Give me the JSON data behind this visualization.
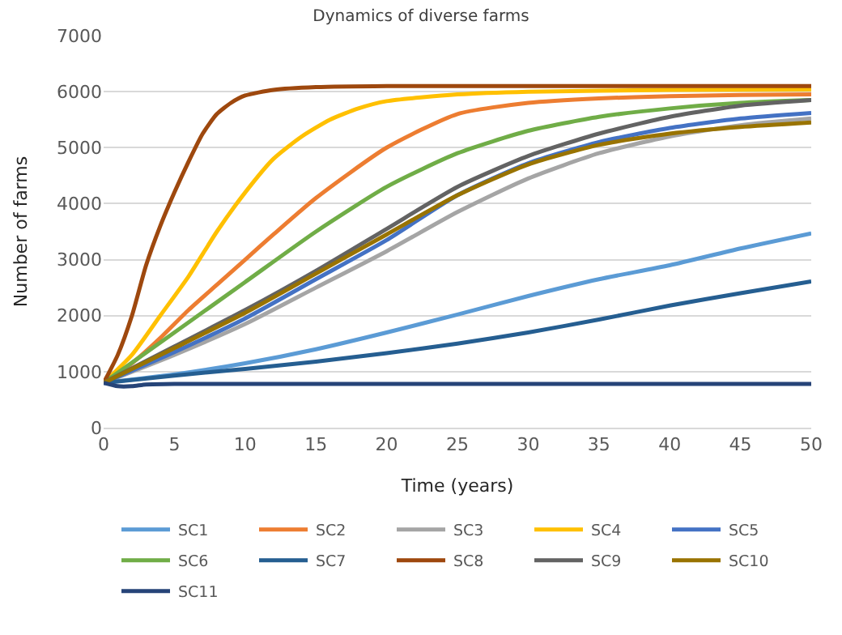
{
  "chart_data": {
    "type": "line",
    "title": "Dynamics of diverse farms",
    "xlabel": "Time (years)",
    "ylabel": "Number of farms",
    "xlim": [
      0,
      50
    ],
    "xticks": [
      0,
      5,
      10,
      15,
      20,
      25,
      30,
      35,
      40,
      45,
      50
    ],
    "ylim": [
      0,
      7000
    ],
    "yticks": [
      0,
      1000,
      2000,
      3000,
      4000,
      5000,
      6000,
      7000
    ],
    "grid": "y",
    "legend": "bottom",
    "marker": "none",
    "line_style": "solid",
    "series": [
      {
        "name": "SC1",
        "color": "#5b9bd5",
        "x": [
          0,
          5,
          10,
          15,
          20,
          25,
          30,
          35,
          40,
          45,
          50
        ],
        "values": [
          800,
          950,
          1150,
          1400,
          1700,
          2020,
          2350,
          2650,
          2900,
          3200,
          3470
        ]
      },
      {
        "name": "SC2",
        "color": "#ed7d31",
        "x": [
          0,
          2,
          4,
          6,
          8,
          10,
          12,
          15,
          20,
          25,
          30,
          35,
          40,
          45,
          50
        ],
        "values": [
          800,
          1150,
          1600,
          2100,
          2550,
          3000,
          3450,
          4100,
          5000,
          5600,
          5800,
          5880,
          5920,
          5940,
          5950
        ]
      },
      {
        "name": "SC3",
        "color": "#a5a5a5",
        "x": [
          0,
          5,
          10,
          15,
          20,
          25,
          30,
          35,
          40,
          45,
          50
        ],
        "values": [
          800,
          1300,
          1850,
          2500,
          3150,
          3850,
          4450,
          4900,
          5200,
          5400,
          5520
        ]
      },
      {
        "name": "SC4",
        "color": "#ffc000",
        "x": [
          0,
          2,
          4,
          6,
          8,
          10,
          12,
          14,
          16,
          18,
          20,
          25,
          30,
          40,
          50
        ],
        "values": [
          800,
          1300,
          2000,
          2700,
          3500,
          4200,
          4800,
          5200,
          5500,
          5700,
          5830,
          5950,
          6000,
          6030,
          6040
        ]
      },
      {
        "name": "SC5",
        "color": "#4472c4",
        "x": [
          0,
          5,
          10,
          15,
          20,
          25,
          30,
          35,
          40,
          45,
          50
        ],
        "values": [
          800,
          1350,
          1950,
          2650,
          3350,
          4150,
          4720,
          5100,
          5350,
          5520,
          5620
        ]
      },
      {
        "name": "SC6",
        "color": "#70ad47",
        "x": [
          0,
          5,
          10,
          15,
          20,
          25,
          30,
          35,
          40,
          45,
          50
        ],
        "values": [
          800,
          1700,
          2600,
          3500,
          4300,
          4900,
          5300,
          5550,
          5700,
          5800,
          5850
        ]
      },
      {
        "name": "SC7",
        "color": "#255e91",
        "x": [
          0,
          5,
          10,
          15,
          20,
          25,
          30,
          35,
          40,
          45,
          50
        ],
        "values": [
          800,
          930,
          1050,
          1180,
          1330,
          1500,
          1700,
          1930,
          2180,
          2400,
          2610
        ]
      },
      {
        "name": "SC8",
        "color": "#9e480e",
        "x": [
          0,
          1,
          2,
          3,
          4,
          5,
          6,
          7,
          8,
          9,
          10,
          12,
          15,
          20,
          30,
          40,
          50
        ],
        "values": [
          800,
          1300,
          2000,
          2900,
          3600,
          4200,
          4750,
          5250,
          5600,
          5800,
          5930,
          6030,
          6080,
          6100,
          6100,
          6100,
          6100
        ]
      },
      {
        "name": "SC9",
        "color": "#636363",
        "x": [
          0,
          5,
          10,
          15,
          20,
          25,
          30,
          35,
          40,
          45,
          50
        ],
        "values": [
          800,
          1450,
          2100,
          2800,
          3550,
          4300,
          4850,
          5250,
          5550,
          5750,
          5850
        ]
      },
      {
        "name": "SC10",
        "color": "#997300",
        "x": [
          0,
          5,
          10,
          15,
          20,
          25,
          30,
          35,
          40,
          45,
          50
        ],
        "values": [
          800,
          1420,
          2050,
          2750,
          3450,
          4150,
          4700,
          5050,
          5250,
          5370,
          5450
        ]
      },
      {
        "name": "SC11",
        "color": "#264478",
        "x": [
          0,
          1,
          2,
          3,
          5,
          10,
          20,
          30,
          40,
          50
        ],
        "values": [
          800,
          740,
          740,
          770,
          780,
          780,
          780,
          780,
          780,
          780
        ]
      }
    ]
  }
}
